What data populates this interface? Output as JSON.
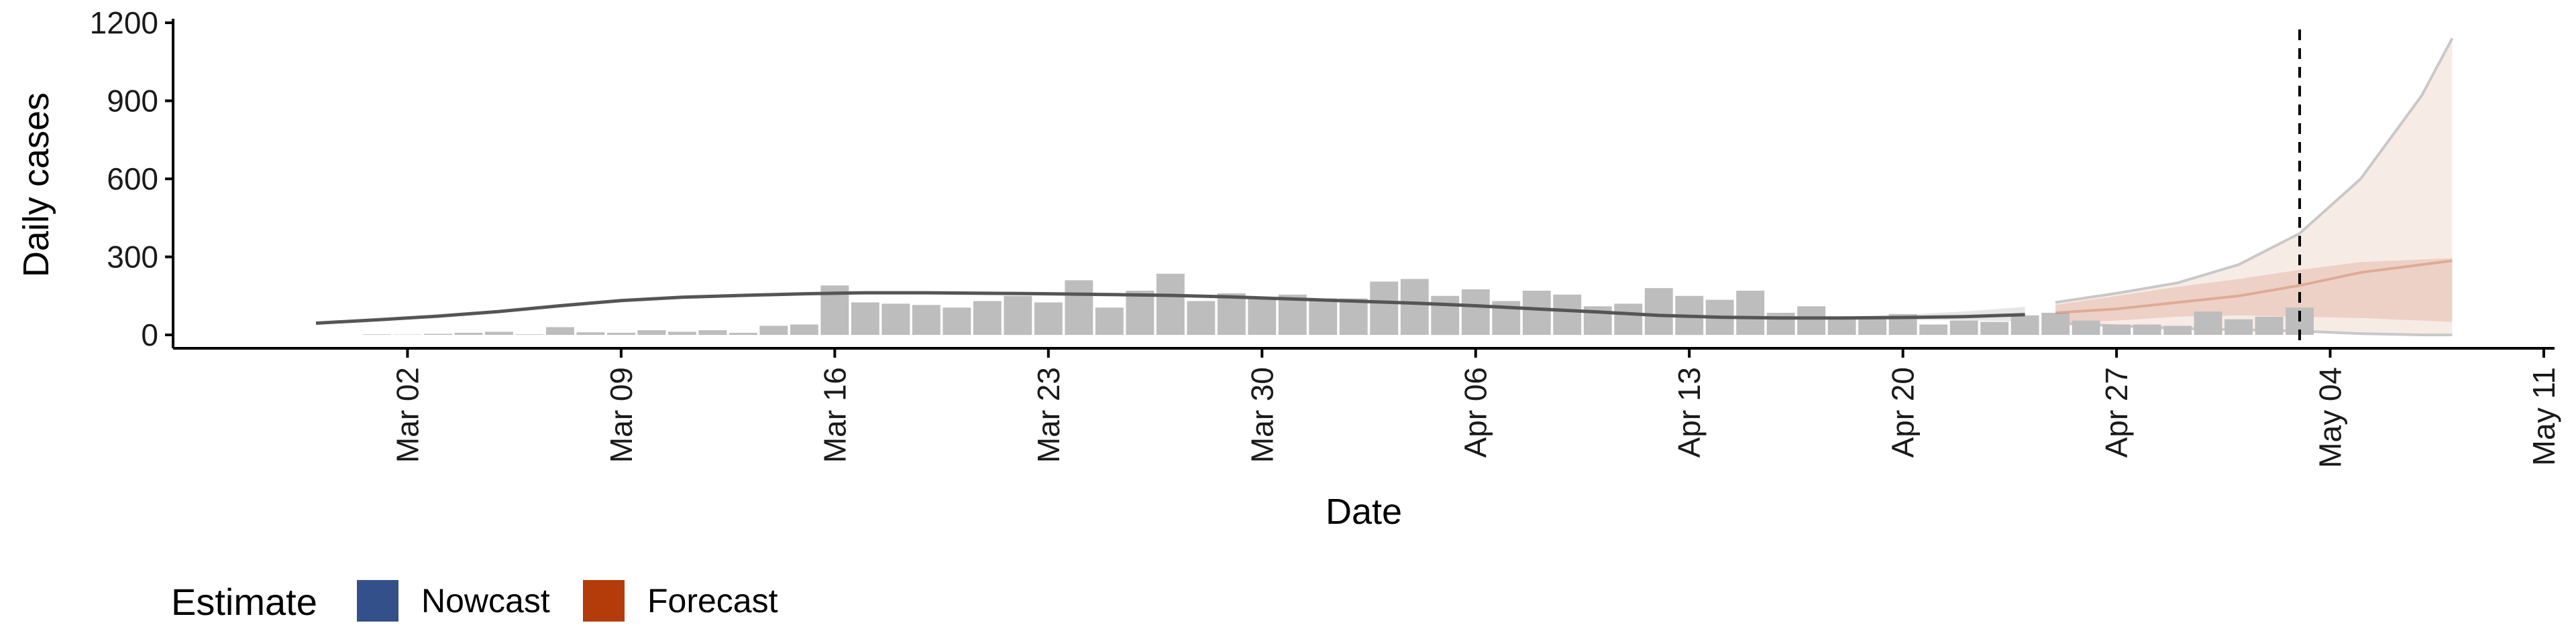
{
  "chart_data": {
    "type": "bar",
    "xlabel": "Date",
    "ylabel": "Daily cases",
    "ylim": [
      0,
      1200
    ],
    "xlim": [
      "2020-02-24",
      "2020-05-11"
    ],
    "y_ticks": [
      "0",
      "300",
      "600",
      "900",
      "1200"
    ],
    "x_ticks": [
      {
        "date": "2020-03-02",
        "label": "Mar 02"
      },
      {
        "date": "2020-03-09",
        "label": "Mar 09"
      },
      {
        "date": "2020-03-16",
        "label": "Mar 16"
      },
      {
        "date": "2020-03-23",
        "label": "Mar 23"
      },
      {
        "date": "2020-03-30",
        "label": "Mar 30"
      },
      {
        "date": "2020-04-06",
        "label": "Apr 06"
      },
      {
        "date": "2020-04-13",
        "label": "Apr 13"
      },
      {
        "date": "2020-04-20",
        "label": "Apr 20"
      },
      {
        "date": "2020-04-27",
        "label": "Apr 27"
      },
      {
        "date": "2020-05-04",
        "label": "May 04"
      },
      {
        "date": "2020-05-11",
        "label": "May 11"
      }
    ],
    "grid": false,
    "legend_position": "bottom-left",
    "legend": {
      "title": "Estimate",
      "entries": [
        {
          "label": "Nowcast",
          "color": "#34508a"
        },
        {
          "label": "Forecast",
          "color": "#b43c0a"
        }
      ]
    },
    "reference_line": {
      "date": "2020-05-03",
      "style": "dashed"
    },
    "observed_cases": {
      "x": [
        "2020-03-01",
        "2020-03-02",
        "2020-03-03",
        "2020-03-04",
        "2020-03-05",
        "2020-03-06",
        "2020-03-07",
        "2020-03-08",
        "2020-03-09",
        "2020-03-10",
        "2020-03-11",
        "2020-03-12",
        "2020-03-13",
        "2020-03-14",
        "2020-03-15",
        "2020-03-16",
        "2020-03-17",
        "2020-03-18",
        "2020-03-19",
        "2020-03-20",
        "2020-03-21",
        "2020-03-22",
        "2020-03-23",
        "2020-03-24",
        "2020-03-25",
        "2020-03-26",
        "2020-03-27",
        "2020-03-28",
        "2020-03-29",
        "2020-03-30",
        "2020-03-31",
        "2020-04-01",
        "2020-04-02",
        "2020-04-03",
        "2020-04-04",
        "2020-04-05",
        "2020-04-06",
        "2020-04-07",
        "2020-04-08",
        "2020-04-09",
        "2020-04-10",
        "2020-04-11",
        "2020-04-12",
        "2020-04-13",
        "2020-04-14",
        "2020-04-15",
        "2020-04-16",
        "2020-04-17",
        "2020-04-18",
        "2020-04-19",
        "2020-04-20",
        "2020-04-21",
        "2020-04-22",
        "2020-04-23",
        "2020-04-24",
        "2020-04-25",
        "2020-04-26",
        "2020-04-27",
        "2020-04-28",
        "2020-04-29",
        "2020-04-30",
        "2020-05-01",
        "2020-05-02",
        "2020-05-03"
      ],
      "values": [
        2,
        1,
        4,
        8,
        12,
        2,
        30,
        10,
        8,
        18,
        12,
        18,
        8,
        35,
        40,
        190,
        125,
        120,
        115,
        105,
        130,
        150,
        125,
        210,
        105,
        170,
        235,
        130,
        160,
        145,
        155,
        140,
        140,
        205,
        215,
        150,
        175,
        130,
        170,
        155,
        110,
        120,
        180,
        150,
        135,
        170,
        85,
        110,
        70,
        70,
        80,
        40,
        55,
        50,
        75,
        85,
        55,
        40,
        40,
        35,
        90,
        60,
        70,
        105
      ]
    },
    "series": [
      {
        "name": "Nowcast",
        "x": [
          "2020-02-28",
          "2020-03-01",
          "2020-03-03",
          "2020-03-05",
          "2020-03-07",
          "2020-03-09",
          "2020-03-11",
          "2020-03-13",
          "2020-03-15",
          "2020-03-17",
          "2020-03-19",
          "2020-03-21",
          "2020-03-23",
          "2020-03-25",
          "2020-03-27",
          "2020-03-29",
          "2020-03-31",
          "2020-04-02",
          "2020-04-04",
          "2020-04-06",
          "2020-04-08",
          "2020-04-10",
          "2020-04-12",
          "2020-04-14",
          "2020-04-16",
          "2020-04-18",
          "2020-04-20",
          "2020-04-22",
          "2020-04-24"
        ],
        "values": [
          45,
          58,
          72,
          90,
          112,
          132,
          145,
          152,
          158,
          162,
          162,
          160,
          158,
          155,
          152,
          146,
          138,
          130,
          122,
          112,
          100,
          88,
          75,
          68,
          65,
          65,
          67,
          70,
          78
        ],
        "lower": [
          45,
          58,
          72,
          90,
          112,
          132,
          145,
          152,
          158,
          162,
          162,
          160,
          158,
          155,
          152,
          146,
          138,
          130,
          122,
          112,
          100,
          88,
          75,
          68,
          64,
          62,
          58,
          56,
          52
        ],
        "upper": [
          45,
          58,
          72,
          90,
          112,
          132,
          145,
          152,
          158,
          162,
          162,
          160,
          158,
          155,
          152,
          146,
          138,
          130,
          122,
          112,
          100,
          88,
          75,
          68,
          66,
          70,
          78,
          90,
          108
        ]
      },
      {
        "name": "Forecast",
        "x": [
          "2020-04-25",
          "2020-04-27",
          "2020-04-29",
          "2020-05-01",
          "2020-05-03",
          "2020-05-05",
          "2020-05-07",
          "2020-05-08"
        ],
        "values": [
          85,
          100,
          125,
          150,
          190,
          240,
          270,
          285
        ],
        "lower50": [
          45,
          55,
          70,
          75,
          70,
          65,
          55,
          50
        ],
        "upper50": [
          115,
          150,
          185,
          215,
          250,
          280,
          290,
          295
        ],
        "lower90": [
          45,
          35,
          25,
          20,
          15,
          5,
          0,
          0
        ],
        "upper90": [
          125,
          160,
          200,
          270,
          390,
          600,
          920,
          1140
        ]
      }
    ]
  }
}
